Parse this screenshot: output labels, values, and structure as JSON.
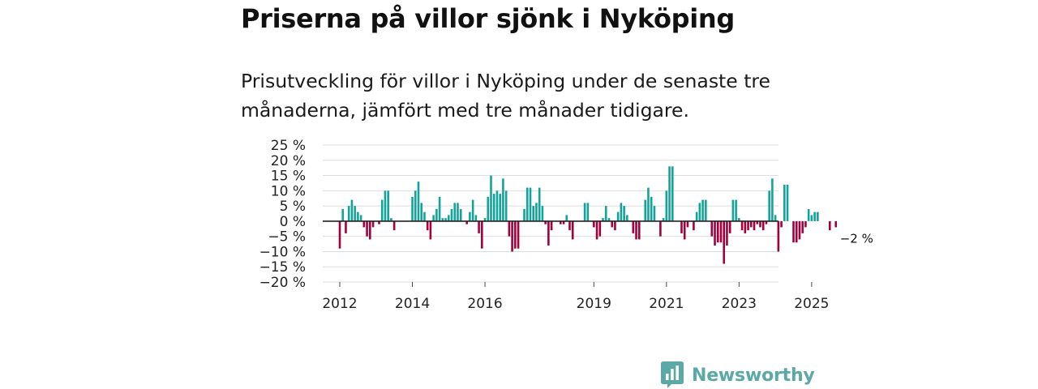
{
  "header": {
    "title": "Priserna på villor sjönk i Nyköping",
    "subtitle": "Prisutveckling för villor i Nyköping under de senaste tre månaderna, jämfört med tre månader tidigare."
  },
  "brand": {
    "name": "Newsworthy"
  },
  "colors": {
    "positive": "#14a39a",
    "negative": "#a4003e",
    "grid": "#dddddd",
    "zero_line": "#222222",
    "brand": "#5aa9a6"
  },
  "chart_data": {
    "type": "bar",
    "title": "Priserna på villor sjönk i Nyköping",
    "subtitle": "Prisutveckling för villor i Nyköping under de senaste tre månaderna, jämfört med tre månader tidigare.",
    "xlabel": "",
    "ylabel": "",
    "unit": "%",
    "ylim": [
      -20,
      25
    ],
    "y_ticks": [
      25,
      20,
      15,
      10,
      5,
      0,
      -5,
      -10,
      -15,
      -20
    ],
    "y_tick_labels": [
      "25 %",
      "20 %",
      "15 %",
      "10 %",
      "5 %",
      "0 %",
      "−5 %",
      "−10 %",
      "−15 %",
      "−20 %"
    ],
    "grid": true,
    "x_tick_labels": [
      {
        "label": "2012",
        "index": 0
      },
      {
        "label": "2014",
        "index": 24
      },
      {
        "label": "2016",
        "index": 48
      },
      {
        "label": "2019",
        "index": 84
      },
      {
        "label": "2021",
        "index": 108
      },
      {
        "label": "2023",
        "index": 132
      },
      {
        "label": "2025",
        "index": 156
      }
    ],
    "last_value_label": "−2 %",
    "period": "monthly, 2012–2025",
    "values": [
      -9,
      4,
      -4,
      5,
      7,
      5,
      3,
      2,
      -2,
      -5,
      -6,
      -2,
      0,
      -1,
      7,
      10,
      10,
      1,
      -3,
      0,
      0,
      0,
      0,
      0,
      8,
      10,
      13,
      6,
      3,
      -3,
      -6,
      2,
      4,
      8,
      1,
      1,
      2,
      4,
      6,
      6,
      4,
      0,
      -1,
      3,
      7,
      2,
      -4,
      -9,
      1,
      8,
      15,
      9,
      10,
      9,
      14,
      10,
      -5,
      -10,
      -9,
      -9,
      0,
      4,
      11,
      11,
      5,
      6,
      11,
      5,
      -1,
      -8,
      -3,
      0,
      0,
      -1,
      -1,
      2,
      -3,
      -6,
      0,
      0,
      0,
      6,
      6,
      0,
      -2,
      -6,
      -5,
      1,
      5,
      1,
      -2,
      -3,
      3,
      6,
      5,
      2,
      0,
      -4,
      -6,
      -6,
      0,
      7,
      11,
      8,
      5,
      0,
      -5,
      1,
      10,
      18,
      18,
      0,
      0,
      -4,
      -6,
      -2,
      0,
      -3,
      3,
      6,
      7,
      7,
      0,
      -5,
      -8,
      -7,
      -7,
      -14,
      -8,
      -4,
      7,
      7,
      1,
      -3,
      -4,
      -3,
      -2,
      -3,
      -1,
      -2,
      -3,
      -1,
      10,
      14,
      2,
      -10,
      -2,
      12,
      12,
      0,
      -7,
      -7,
      -6,
      -4,
      -2,
      4,
      2,
      3,
      3,
      0,
      0,
      0,
      -3,
      0,
      -2
    ]
  }
}
